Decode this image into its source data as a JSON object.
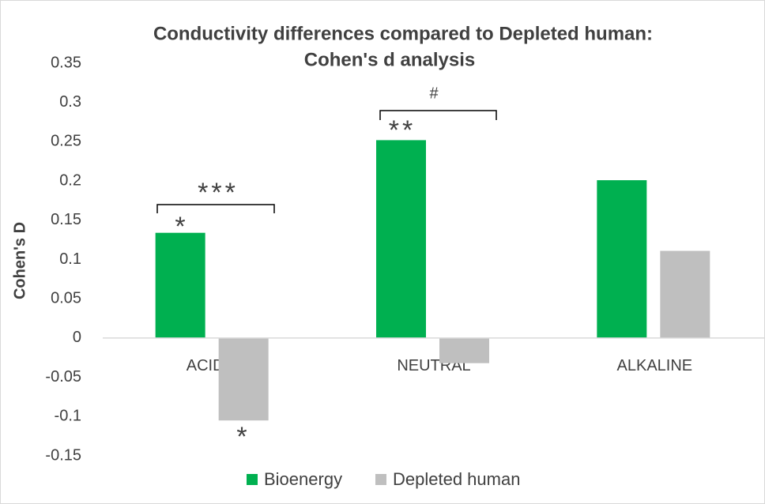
{
  "chart_data": {
    "type": "bar",
    "title": [
      "Conductivity differences compared to Depleted human:",
      "Cohen's d analysis"
    ],
    "y_label": "Cohen's D",
    "categories": [
      "ACIDIC",
      "NEUTRAL",
      "ALKALINE"
    ],
    "series": [
      {
        "name": "Bioenergy",
        "color": "#00b050",
        "values": [
          0.134,
          0.252,
          0.201
        ]
      },
      {
        "name": "Depleted human",
        "color": "#bfbfbf",
        "values": [
          -0.105,
          -0.032,
          0.111
        ]
      }
    ],
    "ylim": [
      -0.15,
      0.35
    ],
    "yticks": [
      0.35,
      0.3,
      0.25,
      0.2,
      0.15,
      0.1,
      0.05,
      0,
      -0.05,
      -0.1,
      -0.15
    ],
    "grid": false,
    "legend": "bottom",
    "annotations": [
      "*",
      "*",
      "***",
      "**",
      "#"
    ]
  }
}
